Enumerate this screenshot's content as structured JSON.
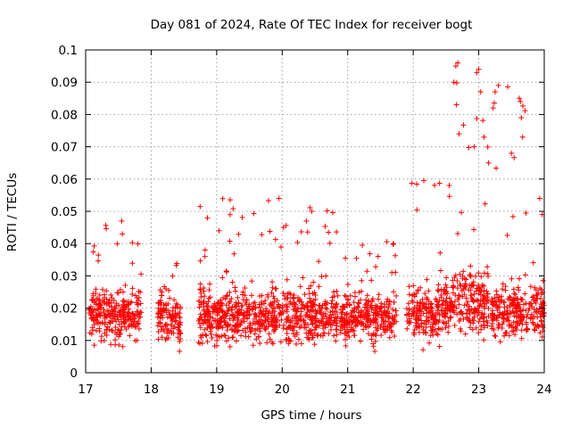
{
  "chart_data": {
    "type": "scatter",
    "title": "Day 081 of 2024, Rate Of TEC Index for receiver bogt",
    "xlabel": "GPS time / hours",
    "ylabel": "ROTI / TECUs",
    "xlim": [
      17,
      24
    ],
    "ylim": [
      0,
      0.1
    ],
    "x_ticks": [
      17,
      18,
      19,
      20,
      21,
      22,
      23,
      24
    ],
    "x_tick_labels": [
      "17",
      "18",
      "19",
      "20",
      "21",
      "22",
      "23",
      "24"
    ],
    "y_ticks": [
      0,
      0.01,
      0.02,
      0.03,
      0.04,
      0.05,
      0.06,
      0.07,
      0.08,
      0.09,
      0.1
    ],
    "y_tick_labels": [
      "0",
      "0.01",
      "0.02",
      "0.03",
      "0.04",
      "0.05",
      "0.06",
      "0.07",
      "0.08",
      "0.09",
      "0.1"
    ],
    "grid": true,
    "marker": "+",
    "color": "#ff0000",
    "series": [
      {
        "name": "ROTI",
        "segments": [
          {
            "x_range": [
              17.05,
              17.85
            ],
            "y_typical": [
              0.008,
              0.028
            ],
            "y_peak": 0.048
          },
          {
            "x_range": [
              18.1,
              18.45
            ],
            "y_typical": [
              0.007,
              0.027
            ],
            "y_peak": 0.034
          },
          {
            "x_range": [
              18.72,
              20.85
            ],
            "y_typical": [
              0.007,
              0.028
            ],
            "y_peak": 0.054
          },
          {
            "x_range": [
              20.88,
              21.75
            ],
            "y_typical": [
              0.008,
              0.027
            ],
            "y_peak": 0.041
          },
          {
            "x_range": [
              21.9,
              22.6
            ],
            "y_typical": [
              0.008,
              0.03
            ],
            "y_peak": 0.06
          },
          {
            "x_range": [
              22.6,
              23.15
            ],
            "y_typical": [
              0.01,
              0.035
            ],
            "y_peak": 0.096
          },
          {
            "x_range": [
              23.2,
              24.0
            ],
            "y_typical": [
              0.008,
              0.03
            ],
            "y_peak": 0.089
          }
        ],
        "highlights": [
          {
            "x": 17.55,
            "y": 0.047
          },
          {
            "x": 17.56,
            "y": 0.043
          },
          {
            "x": 18.82,
            "y": 0.036
          },
          {
            "x": 19.95,
            "y": 0.054
          },
          {
            "x": 20.02,
            "y": 0.045
          },
          {
            "x": 20.45,
            "y": 0.05
          },
          {
            "x": 21.7,
            "y": 0.04
          },
          {
            "x": 22.55,
            "y": 0.058
          },
          {
            "x": 22.65,
            "y": 0.095
          },
          {
            "x": 22.68,
            "y": 0.096
          },
          {
            "x": 22.62,
            "y": 0.09
          },
          {
            "x": 22.66,
            "y": 0.083
          },
          {
            "x": 22.7,
            "y": 0.074
          },
          {
            "x": 22.93,
            "y": 0.07
          },
          {
            "x": 22.97,
            "y": 0.093
          },
          {
            "x": 23.0,
            "y": 0.094
          },
          {
            "x": 23.03,
            "y": 0.087
          },
          {
            "x": 23.08,
            "y": 0.073
          },
          {
            "x": 23.15,
            "y": 0.065
          },
          {
            "x": 23.22,
            "y": 0.082
          },
          {
            "x": 23.25,
            "y": 0.087
          },
          {
            "x": 23.3,
            "y": 0.089
          },
          {
            "x": 23.5,
            "y": 0.068
          },
          {
            "x": 23.62,
            "y": 0.085
          },
          {
            "x": 23.65,
            "y": 0.079
          },
          {
            "x": 23.67,
            "y": 0.073
          },
          {
            "x": 23.93,
            "y": 0.054
          },
          {
            "x": 23.97,
            "y": 0.049
          }
        ]
      }
    ]
  }
}
